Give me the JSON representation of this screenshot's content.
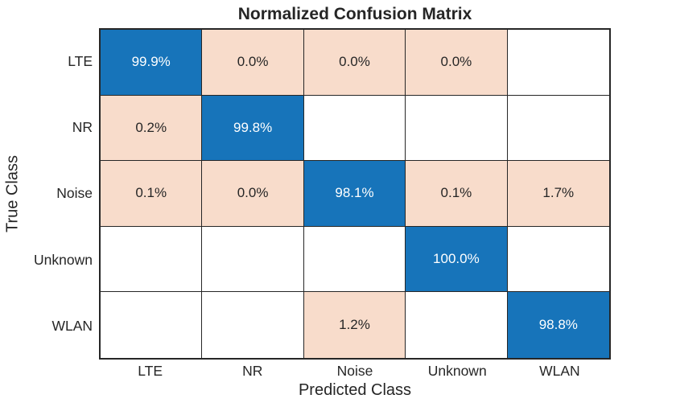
{
  "chart_data": {
    "type": "heatmap",
    "subtype": "confusion-matrix",
    "title": "Normalized Confusion Matrix",
    "xlabel": "Predicted Class",
    "ylabel": "True Class",
    "classes": [
      "LTE",
      "NR",
      "Noise",
      "Unknown",
      "WLAN"
    ],
    "x_tick_labels": [
      "LTE",
      "NR",
      "Noise",
      "Unknown",
      "WLAN"
    ],
    "y_tick_labels": [
      "LTE",
      "NR",
      "Noise",
      "Unknown",
      "WLAN"
    ],
    "cell_labels": [
      [
        "99.9%",
        "0.0%",
        "0.0%",
        "0.0%",
        ""
      ],
      [
        "0.2%",
        "99.8%",
        "",
        "",
        ""
      ],
      [
        "0.1%",
        "0.0%",
        "98.1%",
        "0.1%",
        "1.7%"
      ],
      [
        "",
        "",
        "",
        "100.0%",
        ""
      ],
      [
        "",
        "",
        "1.2%",
        "",
        "98.8%"
      ]
    ],
    "values_percent": [
      [
        99.9,
        0.0,
        0.0,
        0.0,
        null
      ],
      [
        0.2,
        99.8,
        null,
        null,
        null
      ],
      [
        0.1,
        0.0,
        98.1,
        0.1,
        1.7
      ],
      [
        null,
        null,
        null,
        100.0,
        null
      ],
      [
        null,
        null,
        1.2,
        null,
        98.8
      ]
    ],
    "legend": "none",
    "grid": true,
    "colors": {
      "diagonal_cell": "#1774BA",
      "off_diagonal_cell": "#F8DCCB",
      "empty_cell": "#FFFFFF",
      "grid_line": "#262626",
      "text_dark": "#262626",
      "text_on_diagonal": "#FFFFFF"
    }
  }
}
